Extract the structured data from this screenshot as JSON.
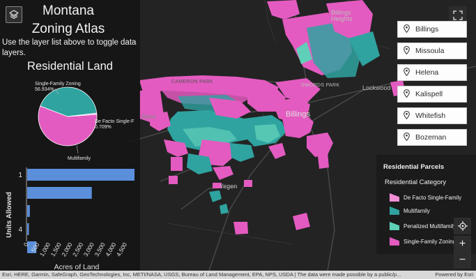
{
  "app": {
    "title": "Montana Zoning Atlas",
    "hint": "Use the layer list above to toggle data layers."
  },
  "colors": {
    "single_family": "#e35bc0",
    "multifamily": "#2fa3a0",
    "penalized": "#5fcfb8",
    "de_facto": "#f08fd6",
    "bar": "#5b8fdc"
  },
  "residential_chart": {
    "title": "Residential Land",
    "pie_labels": {
      "single_family_name": "Single-Family Zoning",
      "single_family_pct": "56.934%",
      "de_facto_name": "De Facto Single-F",
      "de_facto_pct": "0.709%",
      "multifamily_name": "Multifamily"
    }
  },
  "units_chart": {
    "ylabel": "Units Allowed",
    "xlabel": "Acres of Land"
  },
  "chart_data": [
    {
      "type": "pie",
      "title": "Residential Land",
      "slices": [
        {
          "name": "Single-Family Zoning",
          "value": 56.934
        },
        {
          "name": "Multifamily",
          "value": 42.357
        },
        {
          "name": "De Facto Single-F",
          "value": 0.709
        }
      ]
    },
    {
      "type": "bar",
      "orientation": "horizontal",
      "categories": [
        "1",
        "",
        "",
        "4",
        ""
      ],
      "values": [
        4900,
        2950,
        120,
        80,
        420
      ],
      "xlabel": "Acres of Land",
      "ylabel": "Units Allowed",
      "xticks": [
        "0",
        "500",
        "1,000",
        "1,500",
        "2,000",
        "2,500",
        "3,000",
        "3,500",
        "4,000",
        "4,500"
      ],
      "xlim": [
        0,
        4900
      ]
    }
  ],
  "map_labels": {
    "billings_heights": "Billings Heights",
    "swords_park": "SWORDS PARK",
    "lockwood": "Lockwood",
    "billings": "Billings",
    "cameron": "CAMERON PARK",
    "yegen": "Yegen",
    "base": "Base"
  },
  "cities": [
    "Billings",
    "Missoula",
    "Helena",
    "Kalispell",
    "Whitefish",
    "Bozeman"
  ],
  "legend": {
    "title": "Residential Parcels",
    "subtitle": "Residential Category",
    "items": [
      {
        "label": "De Facto Single-Family",
        "icon": "pink-light-swatch"
      },
      {
        "label": "Multifamily",
        "icon": "teal-swatch"
      },
      {
        "label": "Penalized Multifamily",
        "icon": "mint-swatch"
      },
      {
        "label": "Single-Family Zoning",
        "icon": "magenta-swatch"
      }
    ]
  },
  "controls": {
    "zoom_in": "+",
    "zoom_out": "−"
  },
  "attribution": {
    "sources": "Esri, HERE, Garmin, SafeGraph, GeoTechnologies, Inc, METI/NASA, USGS, Bureau of Land Management, EPA, NPS, USDA | The data were made possible by a public/p...",
    "powered": "Powered by Esri"
  }
}
